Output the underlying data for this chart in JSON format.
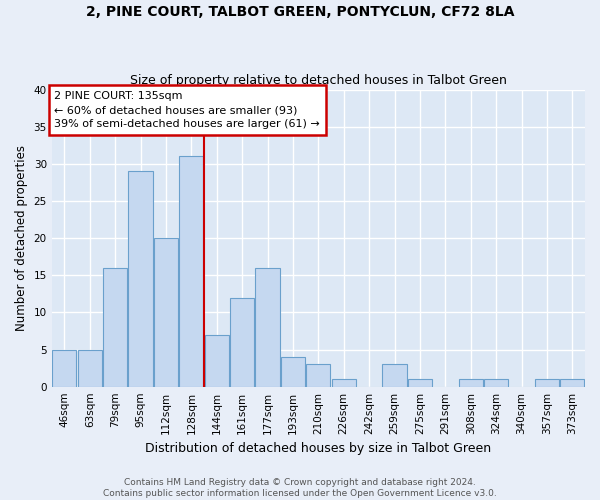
{
  "title": "2, PINE COURT, TALBOT GREEN, PONTYCLUN, CF72 8LA",
  "subtitle": "Size of property relative to detached houses in Talbot Green",
  "xlabel": "Distribution of detached houses by size in Talbot Green",
  "ylabel": "Number of detached properties",
  "categories": [
    "46sqm",
    "63sqm",
    "79sqm",
    "95sqm",
    "112sqm",
    "128sqm",
    "144sqm",
    "161sqm",
    "177sqm",
    "193sqm",
    "210sqm",
    "226sqm",
    "242sqm",
    "259sqm",
    "275sqm",
    "291sqm",
    "308sqm",
    "324sqm",
    "340sqm",
    "357sqm",
    "373sqm"
  ],
  "values": [
    5,
    5,
    16,
    29,
    20,
    31,
    7,
    12,
    16,
    4,
    3,
    1,
    0,
    3,
    1,
    0,
    1,
    1,
    0,
    1,
    1
  ],
  "bar_color": "#c5d8f0",
  "bar_edgecolor": "#6aa0cc",
  "property_bin_index": 6,
  "property_label": "2 PINE COURT: 135sqm",
  "annotation_line1": "← 60% of detached houses are smaller (93)",
  "annotation_line2": "39% of semi-detached houses are larger (61) →",
  "annotation_box_facecolor": "#ffffff",
  "annotation_box_edgecolor": "#cc0000",
  "vline_color": "#cc0000",
  "ylim": [
    0,
    40
  ],
  "yticks": [
    0,
    5,
    10,
    15,
    20,
    25,
    30,
    35,
    40
  ],
  "fig_facecolor": "#e8eef8",
  "plot_facecolor": "#dde8f5",
  "grid_color": "#ffffff",
  "footer_line1": "Contains HM Land Registry data © Crown copyright and database right 2024.",
  "footer_line2": "Contains public sector information licensed under the Open Government Licence v3.0.",
  "title_fontsize": 10,
  "subtitle_fontsize": 9,
  "xlabel_fontsize": 9,
  "ylabel_fontsize": 8.5,
  "tick_fontsize": 7.5,
  "annot_fontsize": 8,
  "footer_fontsize": 6.5
}
